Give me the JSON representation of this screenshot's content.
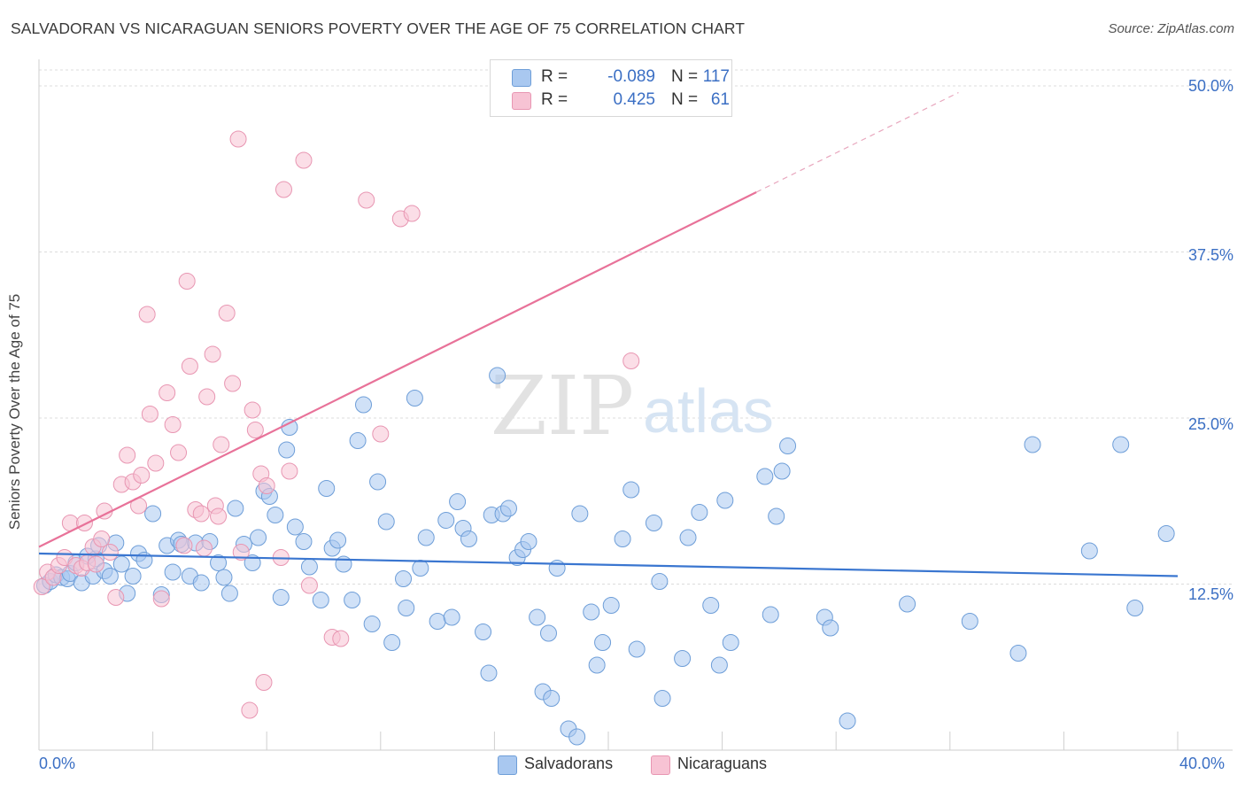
{
  "title": "SALVADORAN VS NICARAGUAN SENIORS POVERTY OVER THE AGE OF 75 CORRELATION CHART",
  "source": "Source: ZipAtlas.com",
  "watermark": {
    "zip": "ZIP",
    "atlas": "atlas"
  },
  "legend": {
    "r_label": "R =",
    "n_label": "N =",
    "rows": [
      {
        "r": "-0.089",
        "n": "117",
        "color": "#a9c8f0",
        "border": "#6e9ed8"
      },
      {
        "r": "0.425",
        "n": "61",
        "color": "#f7c3d4",
        "border": "#e896b2"
      }
    ]
  },
  "chart_data": {
    "type": "scatter",
    "title": "SALVADORAN VS NICARAGUAN SENIORS POVERTY OVER THE AGE OF 75 CORRELATION CHART",
    "xlabel": "",
    "ylabel": "Seniors Poverty Over the Age of 75",
    "x_range": [
      0,
      40
    ],
    "y_range": [
      0,
      50
    ],
    "x_tick_labels": {
      "min": "0.0%",
      "max": "40.0%"
    },
    "y_ticks": [
      {
        "value": 12.5,
        "label": "12.5%"
      },
      {
        "value": 25,
        "label": "25.0%"
      },
      {
        "value": 37.5,
        "label": "37.5%"
      },
      {
        "value": 50,
        "label": "50.0%"
      }
    ],
    "grid": true,
    "legend_position": "top-center",
    "series": [
      {
        "name": "Salvadorans",
        "color": "#a9c8f0",
        "stroke": "#6e9ed8",
        "trend": {
          "x": [
            0,
            40
          ],
          "y": [
            14.8,
            13.1
          ],
          "color": "#3a76d0"
        },
        "points": [
          [
            0.2,
            12.4
          ],
          [
            0.4,
            12.7
          ],
          [
            0.6,
            13.2
          ],
          [
            0.8,
            13.0
          ],
          [
            1.0,
            12.9
          ],
          [
            1.1,
            13.3
          ],
          [
            1.3,
            14.1
          ],
          [
            1.5,
            12.6
          ],
          [
            1.7,
            14.6
          ],
          [
            1.9,
            13.1
          ],
          [
            2.0,
            14.4
          ],
          [
            2.1,
            15.4
          ],
          [
            2.3,
            13.5
          ],
          [
            2.5,
            13.1
          ],
          [
            2.7,
            15.6
          ],
          [
            2.9,
            14.0
          ],
          [
            3.1,
            11.8
          ],
          [
            3.3,
            13.1
          ],
          [
            3.5,
            14.8
          ],
          [
            3.7,
            14.3
          ],
          [
            4.0,
            17.8
          ],
          [
            4.3,
            11.7
          ],
          [
            4.5,
            15.4
          ],
          [
            4.7,
            13.4
          ],
          [
            4.9,
            15.8
          ],
          [
            5.0,
            15.5
          ],
          [
            5.3,
            13.1
          ],
          [
            5.5,
            15.6
          ],
          [
            5.7,
            12.6
          ],
          [
            6.0,
            15.7
          ],
          [
            6.3,
            14.1
          ],
          [
            6.5,
            13.0
          ],
          [
            6.7,
            11.8
          ],
          [
            6.9,
            18.2
          ],
          [
            7.2,
            15.5
          ],
          [
            7.5,
            14.1
          ],
          [
            7.7,
            16.0
          ],
          [
            7.9,
            19.5
          ],
          [
            8.1,
            19.1
          ],
          [
            8.3,
            17.7
          ],
          [
            8.5,
            11.5
          ],
          [
            8.7,
            22.6
          ],
          [
            8.8,
            24.3
          ],
          [
            9.0,
            16.8
          ],
          [
            9.3,
            15.7
          ],
          [
            9.5,
            13.8
          ],
          [
            9.9,
            11.3
          ],
          [
            10.1,
            19.7
          ],
          [
            10.3,
            15.2
          ],
          [
            10.5,
            15.8
          ],
          [
            10.7,
            14.0
          ],
          [
            11.0,
            11.3
          ],
          [
            11.2,
            23.3
          ],
          [
            11.4,
            26.0
          ],
          [
            11.7,
            9.5
          ],
          [
            11.9,
            20.2
          ],
          [
            12.2,
            17.2
          ],
          [
            12.4,
            8.1
          ],
          [
            12.8,
            12.9
          ],
          [
            12.9,
            10.7
          ],
          [
            13.2,
            26.5
          ],
          [
            13.4,
            13.7
          ],
          [
            13.6,
            16.0
          ],
          [
            14.0,
            9.7
          ],
          [
            14.3,
            17.3
          ],
          [
            14.5,
            10.0
          ],
          [
            14.7,
            18.7
          ],
          [
            14.9,
            16.7
          ],
          [
            15.1,
            15.9
          ],
          [
            15.6,
            8.9
          ],
          [
            15.8,
            5.8
          ],
          [
            15.9,
            17.7
          ],
          [
            16.1,
            28.2
          ],
          [
            16.3,
            17.8
          ],
          [
            16.5,
            18.2
          ],
          [
            16.8,
            14.5
          ],
          [
            17.0,
            15.1
          ],
          [
            17.2,
            15.7
          ],
          [
            17.5,
            10.0
          ],
          [
            17.7,
            4.4
          ],
          [
            17.9,
            8.8
          ],
          [
            18.0,
            3.9
          ],
          [
            18.2,
            13.7
          ],
          [
            18.6,
            1.6
          ],
          [
            18.9,
            1.0
          ],
          [
            19.0,
            17.8
          ],
          [
            19.4,
            10.4
          ],
          [
            19.6,
            6.4
          ],
          [
            19.8,
            8.1
          ],
          [
            20.1,
            10.9
          ],
          [
            20.5,
            15.9
          ],
          [
            20.8,
            19.6
          ],
          [
            21.0,
            7.6
          ],
          [
            21.6,
            17.1
          ],
          [
            21.8,
            12.7
          ],
          [
            21.9,
            3.9
          ],
          [
            22.6,
            6.9
          ],
          [
            22.8,
            16.0
          ],
          [
            23.2,
            17.9
          ],
          [
            23.6,
            10.9
          ],
          [
            23.9,
            6.4
          ],
          [
            24.1,
            18.8
          ],
          [
            24.3,
            8.1
          ],
          [
            25.5,
            20.6
          ],
          [
            25.7,
            10.2
          ],
          [
            25.9,
            17.6
          ],
          [
            26.1,
            21.0
          ],
          [
            26.3,
            22.9
          ],
          [
            27.6,
            10.0
          ],
          [
            27.8,
            9.2
          ],
          [
            28.4,
            2.2
          ],
          [
            30.5,
            11.0
          ],
          [
            32.7,
            9.7
          ],
          [
            34.4,
            7.3
          ],
          [
            34.9,
            23.0
          ],
          [
            36.9,
            15.0
          ],
          [
            38.0,
            23.0
          ],
          [
            38.5,
            10.7
          ],
          [
            39.6,
            16.3
          ]
        ]
      },
      {
        "name": "Nicaraguans",
        "color": "#f7c3d4",
        "stroke": "#e896b2",
        "trend": {
          "x": [
            0,
            25.2
          ],
          "y": [
            15.3,
            42.0
          ],
          "x_dash_end": 32.3,
          "y_dash_end": 49.5,
          "color": "#e87299"
        },
        "points": [
          [
            0.1,
            12.3
          ],
          [
            0.3,
            13.4
          ],
          [
            0.5,
            13.0
          ],
          [
            0.7,
            13.9
          ],
          [
            0.9,
            14.5
          ],
          [
            1.1,
            17.1
          ],
          [
            1.3,
            13.9
          ],
          [
            1.5,
            13.7
          ],
          [
            1.7,
            14.1
          ],
          [
            1.9,
            15.3
          ],
          [
            2.0,
            14.0
          ],
          [
            2.2,
            15.9
          ],
          [
            2.3,
            18.0
          ],
          [
            2.5,
            14.9
          ],
          [
            2.7,
            11.5
          ],
          [
            2.9,
            20.0
          ],
          [
            3.1,
            22.2
          ],
          [
            3.3,
            20.2
          ],
          [
            3.5,
            18.4
          ],
          [
            3.6,
            20.7
          ],
          [
            3.8,
            32.8
          ],
          [
            3.9,
            25.3
          ],
          [
            4.1,
            21.6
          ],
          [
            4.3,
            11.4
          ],
          [
            4.5,
            26.9
          ],
          [
            4.7,
            24.5
          ],
          [
            4.9,
            22.4
          ],
          [
            5.1,
            15.4
          ],
          [
            5.2,
            35.3
          ],
          [
            5.3,
            28.9
          ],
          [
            5.5,
            18.1
          ],
          [
            5.7,
            17.8
          ],
          [
            5.8,
            15.2
          ],
          [
            5.9,
            26.6
          ],
          [
            6.1,
            29.8
          ],
          [
            6.2,
            18.4
          ],
          [
            6.3,
            17.6
          ],
          [
            6.4,
            23.0
          ],
          [
            6.6,
            32.9
          ],
          [
            6.8,
            27.6
          ],
          [
            7.0,
            46.0
          ],
          [
            7.1,
            14.9
          ],
          [
            7.4,
            3.0
          ],
          [
            7.5,
            25.6
          ],
          [
            7.6,
            24.1
          ],
          [
            7.8,
            20.8
          ],
          [
            7.9,
            5.1
          ],
          [
            8.0,
            19.9
          ],
          [
            8.5,
            14.5
          ],
          [
            8.6,
            42.2
          ],
          [
            8.8,
            21.0
          ],
          [
            9.3,
            44.4
          ],
          [
            9.5,
            12.4
          ],
          [
            10.3,
            8.5
          ],
          [
            10.6,
            8.4
          ],
          [
            11.5,
            41.4
          ],
          [
            12.0,
            23.8
          ],
          [
            12.7,
            40.0
          ],
          [
            13.1,
            40.4
          ],
          [
            20.8,
            29.3
          ],
          [
            1.6,
            17.1
          ]
        ]
      }
    ]
  },
  "x_ticks_labels": [
    "0.0%",
    "40.0%"
  ],
  "y_ticks_labels": [
    "12.5%",
    "25.0%",
    "37.5%",
    "50.0%"
  ],
  "bottom_legend": [
    {
      "label": "Salvadorans"
    },
    {
      "label": "Nicaraguans"
    }
  ]
}
